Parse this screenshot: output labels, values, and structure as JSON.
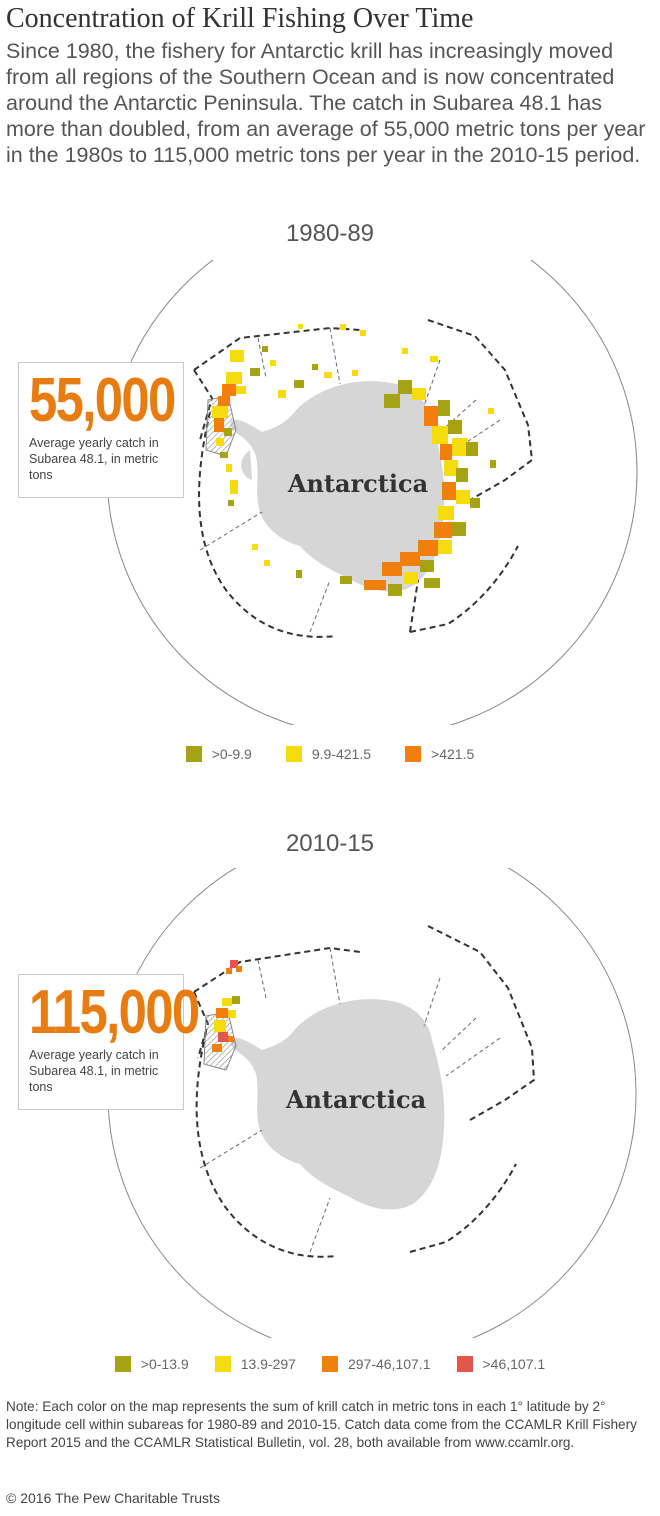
{
  "title": "Concentration of Krill Fishing Over Time",
  "description": "Since 1980, the fishery for Antarctic krill has increasingly moved from all regions of the Southern Ocean and is now concentrated around the Antarctic Peninsula. The catch in Subarea 48.1 has more than doubled, from an average of 55,000 metric tons per year in the 1980s to 115,000 metric tons per year in the 2010-15 period.",
  "colors": {
    "olive": "#a5a314",
    "yellow": "#f6db0f",
    "orange": "#f07f0d",
    "red": "#e2564b",
    "land": "#d6d6d6",
    "callout_number": "#e77d12"
  },
  "maps": [
    {
      "period": "1980-89",
      "continent_label": "Antarctica",
      "callout": {
        "value": "55,000",
        "caption": "Average yearly catch in Subarea 48.1, in metric tons"
      },
      "legend": [
        {
          "label": ">0-9.9",
          "color": "#a5a314"
        },
        {
          "label": "9.9-421.5",
          "color": "#f6db0f"
        },
        {
          "label": ">421.5",
          "color": "#f07f0d"
        }
      ]
    },
    {
      "period": "2010-15",
      "continent_label": "Antarctica",
      "callout": {
        "value": "115,000",
        "caption": "Average yearly catch in Subarea 48.1, in metric tons"
      },
      "legend": [
        {
          "label": ">0-13.9",
          "color": "#a5a314"
        },
        {
          "label": "13.9-297",
          "color": "#f6db0f"
        },
        {
          "label": "297-46,107.1",
          "color": "#f07f0d"
        },
        {
          "label": ">46,107.1",
          "color": "#e2564b"
        }
      ]
    }
  ],
  "note": "Note: Each color on the map represents the sum of krill catch in metric tons in each 1° latitude by 2° longitude cell within subareas for 1980-89 and 2010-15. Catch data come from the CCAMLR Krill Fishery Report 2015 and the CCAMLR Statistical Bulletin, vol. 28, both available from www.ccamlr.org.",
  "copyright": "© 2016 The Pew Charitable Trusts"
}
